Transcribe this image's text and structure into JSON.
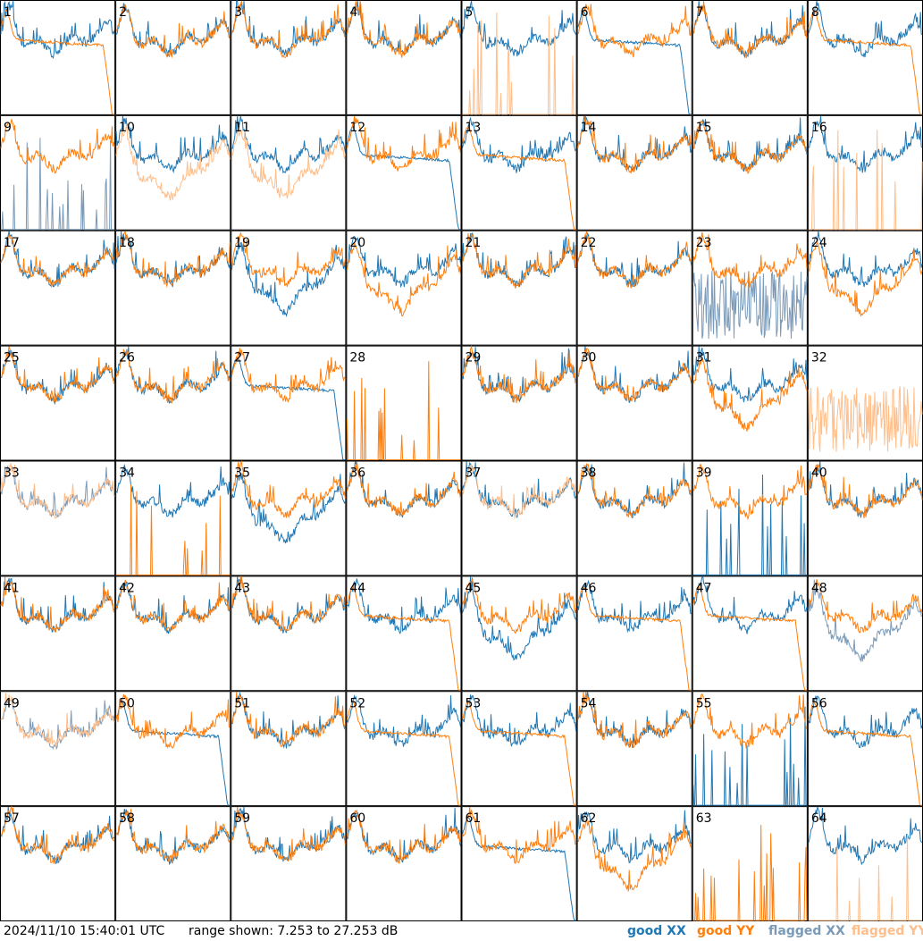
{
  "footer": {
    "timestamp": "2024/11/10 15:40:01 UTC",
    "range_text": "range shown: 7.253 to 27.253 dB"
  },
  "legend": {
    "good_xx": "good XX",
    "good_yy": "good YY",
    "flagged_xx": "flagged XX",
    "flagged_yy": "flagged YY"
  },
  "colors": {
    "good_xx": "#1f77b4",
    "good_yy": "#ff7f0e",
    "flagged_xx": "#7a9ab8",
    "flagged_yy": "#ffbe8a"
  },
  "chart_data": {
    "type": "line",
    "layout": "8x8 small multiples",
    "ylim": [
      7.253,
      27.253
    ],
    "yunit": "dB",
    "panels": [
      {
        "id": "1",
        "xx": "normal",
        "yy": "drop",
        "xx_flag": false,
        "yy_flag": false
      },
      {
        "id": "2",
        "xx": "normal",
        "yy": "normal",
        "xx_flag": false,
        "yy_flag": false
      },
      {
        "id": "3",
        "xx": "normal",
        "yy": "normal",
        "xx_flag": false,
        "yy_flag": false
      },
      {
        "id": "4",
        "xx": "normal",
        "yy": "normal",
        "xx_flag": false,
        "yy_flag": false
      },
      {
        "id": "5",
        "xx": "normal",
        "yy": "spiky",
        "xx_flag": false,
        "yy_flag": true
      },
      {
        "id": "6",
        "xx": "drop",
        "yy": "normal",
        "xx_flag": false,
        "yy_flag": false
      },
      {
        "id": "7",
        "xx": "normal",
        "yy": "normal",
        "xx_flag": false,
        "yy_flag": false
      },
      {
        "id": "8",
        "xx": "normal",
        "yy": "drop",
        "xx_flag": false,
        "yy_flag": false
      },
      {
        "id": "9",
        "xx": "spiky",
        "yy": "normal",
        "xx_flag": true,
        "yy_flag": false
      },
      {
        "id": "10",
        "xx": "normal",
        "yy": "low",
        "xx_flag": false,
        "yy_flag": true
      },
      {
        "id": "11",
        "xx": "normal",
        "yy": "low",
        "xx_flag": false,
        "yy_flag": true
      },
      {
        "id": "12",
        "xx": "drop",
        "yy": "normal",
        "xx_flag": false,
        "yy_flag": false
      },
      {
        "id": "13",
        "xx": "normal",
        "yy": "drop",
        "xx_flag": false,
        "yy_flag": false
      },
      {
        "id": "14",
        "xx": "normal",
        "yy": "normal",
        "xx_flag": false,
        "yy_flag": false
      },
      {
        "id": "15",
        "xx": "normal",
        "yy": "normal",
        "xx_flag": false,
        "yy_flag": false
      },
      {
        "id": "16",
        "xx": "normal",
        "yy": "spiky",
        "xx_flag": false,
        "yy_flag": true
      },
      {
        "id": "17",
        "xx": "normal",
        "yy": "normal",
        "xx_flag": false,
        "yy_flag": false
      },
      {
        "id": "18",
        "xx": "normal",
        "yy": "normal",
        "xx_flag": false,
        "yy_flag": false
      },
      {
        "id": "19",
        "xx": "low",
        "yy": "normal",
        "xx_flag": false,
        "yy_flag": false
      },
      {
        "id": "20",
        "xx": "normal",
        "yy": "low",
        "xx_flag": false,
        "yy_flag": false
      },
      {
        "id": "21",
        "xx": "normal",
        "yy": "normal",
        "xx_flag": false,
        "yy_flag": false
      },
      {
        "id": "22",
        "xx": "normal",
        "yy": "normal",
        "xx_flag": false,
        "yy_flag": false
      },
      {
        "id": "23",
        "xx": "noisy",
        "yy": "normal",
        "xx_flag": true,
        "yy_flag": false
      },
      {
        "id": "24",
        "xx": "normal",
        "yy": "low",
        "xx_flag": false,
        "yy_flag": false
      },
      {
        "id": "25",
        "xx": "normal",
        "yy": "normal",
        "xx_flag": false,
        "yy_flag": false
      },
      {
        "id": "26",
        "xx": "normal",
        "yy": "normal",
        "xx_flag": false,
        "yy_flag": false
      },
      {
        "id": "27",
        "xx": "drop",
        "yy": "normal",
        "xx_flag": false,
        "yy_flag": false
      },
      {
        "id": "28",
        "xx": "none",
        "yy": "spiky",
        "xx_flag": false,
        "yy_flag": false
      },
      {
        "id": "29",
        "xx": "normal",
        "yy": "normal",
        "xx_flag": false,
        "yy_flag": false
      },
      {
        "id": "30",
        "xx": "normal",
        "yy": "normal",
        "xx_flag": false,
        "yy_flag": false
      },
      {
        "id": "31",
        "xx": "normal",
        "yy": "low",
        "xx_flag": false,
        "yy_flag": false
      },
      {
        "id": "32",
        "xx": "none",
        "yy": "noisy",
        "xx_flag": false,
        "yy_flag": true
      },
      {
        "id": "33",
        "xx": "normal",
        "yy": "normal",
        "xx_flag": true,
        "yy_flag": true
      },
      {
        "id": "34",
        "xx": "normal",
        "yy": "spiky",
        "xx_flag": false,
        "yy_flag": false
      },
      {
        "id": "35",
        "xx": "low",
        "yy": "normal",
        "xx_flag": false,
        "yy_flag": false
      },
      {
        "id": "36",
        "xx": "normal",
        "yy": "normal",
        "xx_flag": false,
        "yy_flag": false
      },
      {
        "id": "37",
        "xx": "normal",
        "yy": "normal",
        "xx_flag": false,
        "yy_flag": true
      },
      {
        "id": "38",
        "xx": "normal",
        "yy": "normal",
        "xx_flag": false,
        "yy_flag": false
      },
      {
        "id": "39",
        "xx": "spiky",
        "yy": "normal",
        "xx_flag": false,
        "yy_flag": false
      },
      {
        "id": "40",
        "xx": "normal",
        "yy": "normal",
        "xx_flag": false,
        "yy_flag": false
      },
      {
        "id": "41",
        "xx": "normal",
        "yy": "normal",
        "xx_flag": false,
        "yy_flag": false
      },
      {
        "id": "42",
        "xx": "normal",
        "yy": "normal",
        "xx_flag": false,
        "yy_flag": false
      },
      {
        "id": "43",
        "xx": "normal",
        "yy": "normal",
        "xx_flag": false,
        "yy_flag": false
      },
      {
        "id": "44",
        "xx": "normal",
        "yy": "drop",
        "xx_flag": false,
        "yy_flag": false
      },
      {
        "id": "45",
        "xx": "low",
        "yy": "normal",
        "xx_flag": false,
        "yy_flag": false
      },
      {
        "id": "46",
        "xx": "normal",
        "yy": "drop",
        "xx_flag": false,
        "yy_flag": false
      },
      {
        "id": "47",
        "xx": "normal",
        "yy": "drop",
        "xx_flag": false,
        "yy_flag": false
      },
      {
        "id": "48",
        "xx": "low",
        "yy": "normal",
        "xx_flag": true,
        "yy_flag": false
      },
      {
        "id": "49",
        "xx": "normal",
        "yy": "normal",
        "xx_flag": true,
        "yy_flag": true
      },
      {
        "id": "50",
        "xx": "drop",
        "yy": "normal",
        "xx_flag": false,
        "yy_flag": false
      },
      {
        "id": "51",
        "xx": "normal",
        "yy": "normal",
        "xx_flag": false,
        "yy_flag": false
      },
      {
        "id": "52",
        "xx": "normal",
        "yy": "drop",
        "xx_flag": false,
        "yy_flag": false
      },
      {
        "id": "53",
        "xx": "normal",
        "yy": "drop",
        "xx_flag": false,
        "yy_flag": false
      },
      {
        "id": "54",
        "xx": "normal",
        "yy": "normal",
        "xx_flag": false,
        "yy_flag": false
      },
      {
        "id": "55",
        "xx": "spiky",
        "yy": "normal",
        "xx_flag": false,
        "yy_flag": false
      },
      {
        "id": "56",
        "xx": "normal",
        "yy": "drop",
        "xx_flag": false,
        "yy_flag": false
      },
      {
        "id": "57",
        "xx": "normal",
        "yy": "normal",
        "xx_flag": false,
        "yy_flag": false
      },
      {
        "id": "58",
        "xx": "normal",
        "yy": "normal",
        "xx_flag": false,
        "yy_flag": false
      },
      {
        "id": "59",
        "xx": "normal",
        "yy": "normal",
        "xx_flag": false,
        "yy_flag": false
      },
      {
        "id": "60",
        "xx": "normal",
        "yy": "normal",
        "xx_flag": false,
        "yy_flag": false
      },
      {
        "id": "61",
        "xx": "drop",
        "yy": "normal",
        "xx_flag": false,
        "yy_flag": false
      },
      {
        "id": "62",
        "xx": "normal",
        "yy": "low",
        "xx_flag": false,
        "yy_flag": false
      },
      {
        "id": "63",
        "xx": "none",
        "yy": "spiky",
        "xx_flag": false,
        "yy_flag": false
      },
      {
        "id": "64",
        "xx": "normal",
        "yy": "spiky",
        "xx_flag": false,
        "yy_flag": true
      }
    ]
  }
}
